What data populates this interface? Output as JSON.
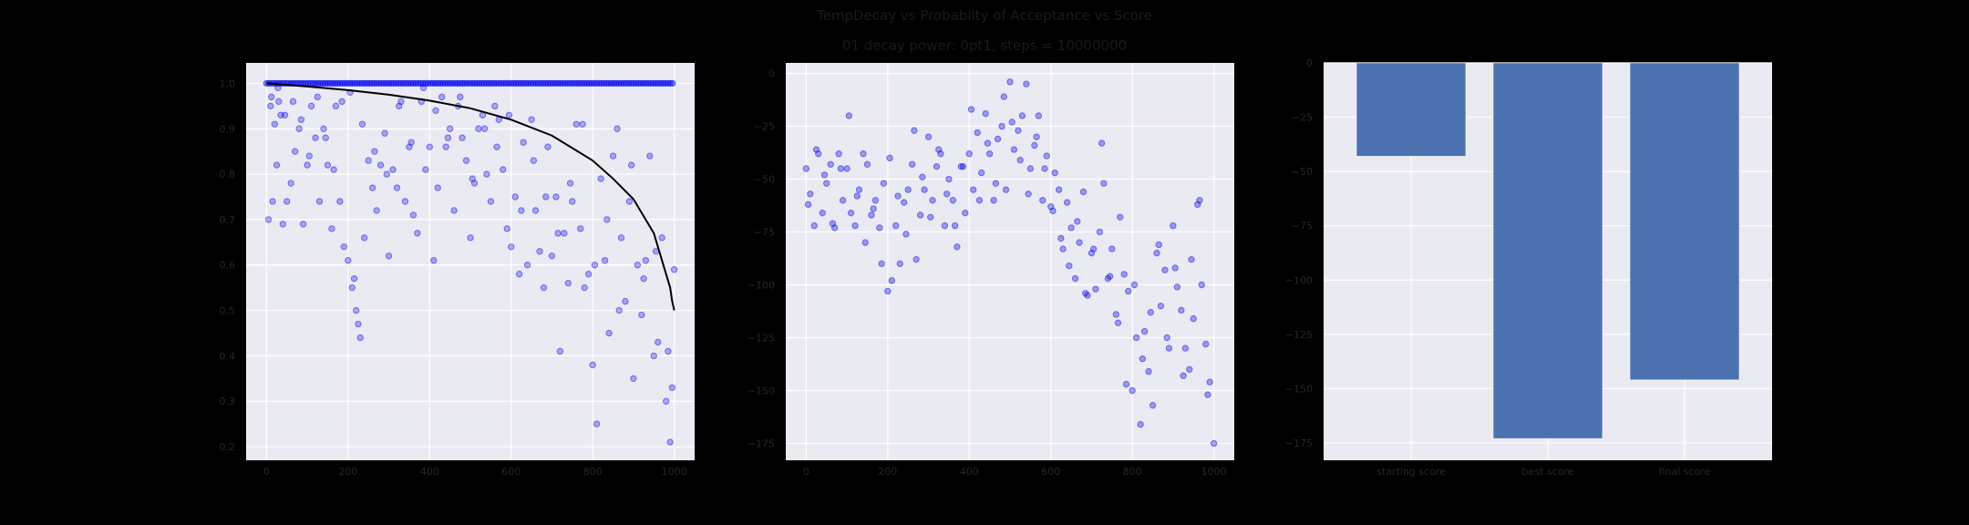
{
  "figure": {
    "title": "TempDecay vs Probablity of Acceptance vs Score",
    "subtitle": "01 decay power: 0pt1, steps = 10000000",
    "colors": {
      "background": "#000000",
      "panel": "#eaeaf2",
      "grid": "#ffffff",
      "points": "#0000ee",
      "curve": "#000000",
      "bar": "#4c72b0",
      "tick_text": "#262626"
    }
  },
  "chart_data": [
    {
      "type": "scatter",
      "xlim": [
        -50,
        1050
      ],
      "ylim": [
        0.17,
        1.045
      ],
      "xticks": [
        0,
        200,
        400,
        600,
        800,
        1000
      ],
      "yticks": [
        0.2,
        0.3,
        0.4,
        0.5,
        0.6,
        0.7,
        0.8,
        0.9,
        1.0
      ],
      "ytick_labels": [
        "0.2",
        "0.3",
        "0.4",
        "0.5",
        "0.6",
        "0.7",
        "0.8",
        "0.9",
        "1.0"
      ],
      "grid": true,
      "series": [
        {
          "marker": "circle",
          "point_alpha": 0.3,
          "note_values": "many accepted points at y=1.0 for x 0–1000 (dense band)",
          "x": [
            5,
            10,
            15,
            20,
            25,
            30,
            35,
            40,
            50,
            60,
            70,
            80,
            90,
            100,
            110,
            120,
            130,
            140,
            150,
            160,
            170,
            180,
            190,
            200,
            210,
            215,
            220,
            225,
            230,
            240,
            250,
            260,
            270,
            280,
            290,
            300,
            310,
            320,
            330,
            340,
            350,
            360,
            370,
            380,
            390,
            400,
            410,
            420,
            430,
            440,
            450,
            460,
            470,
            480,
            490,
            500,
            510,
            520,
            530,
            540,
            550,
            560,
            570,
            580,
            590,
            600,
            610,
            620,
            630,
            640,
            650,
            660,
            670,
            680,
            690,
            700,
            710,
            720,
            730,
            740,
            750,
            760,
            770,
            780,
            790,
            800,
            810,
            820,
            830,
            840,
            850,
            860,
            870,
            880,
            890,
            900,
            910,
            920,
            930,
            940,
            950,
            960,
            970,
            980,
            990,
            1000,
            12,
            28,
            45,
            65,
            85,
            105,
            125,
            145,
            165,
            185,
            205,
            235,
            265,
            295,
            325,
            355,
            385,
            415,
            445,
            475,
            505,
            535,
            565,
            595,
            625,
            655,
            685,
            715,
            745,
            775,
            805,
            835,
            865,
            895,
            925,
            955,
            985,
            995
          ],
          "y": [
            0.7,
            0.95,
            0.74,
            0.91,
            0.82,
            0.96,
            0.93,
            0.69,
            0.74,
            0.78,
            0.85,
            0.9,
            0.69,
            0.82,
            0.95,
            0.88,
            0.74,
            0.9,
            0.82,
            0.68,
            0.95,
            0.74,
            0.64,
            0.61,
            0.55,
            0.57,
            0.5,
            0.47,
            0.44,
            0.66,
            0.83,
            0.77,
            0.72,
            0.82,
            0.89,
            0.62,
            0.81,
            0.77,
            0.96,
            0.74,
            0.86,
            0.71,
            0.67,
            0.96,
            0.81,
            0.86,
            0.61,
            0.77,
            0.97,
            0.86,
            0.9,
            0.72,
            0.95,
            0.88,
            0.83,
            0.66,
            0.78,
            0.9,
            0.93,
            0.8,
            0.74,
            0.95,
            0.92,
            0.81,
            0.68,
            0.64,
            0.75,
            0.58,
            0.87,
            0.6,
            0.92,
            0.72,
            0.63,
            0.55,
            0.86,
            0.62,
            0.75,
            0.41,
            0.67,
            0.56,
            0.74,
            0.91,
            0.68,
            0.55,
            0.58,
            0.38,
            0.25,
            0.79,
            0.61,
            0.45,
            0.84,
            0.9,
            0.66,
            0.52,
            0.74,
            0.35,
            0.6,
            0.49,
            0.61,
            0.84,
            0.4,
            0.43,
            0.66,
            0.3,
            0.21,
            0.59,
            0.97,
            0.99,
            0.93,
            0.96,
            0.92,
            0.84,
            0.97,
            0.88,
            0.81,
            0.96,
            0.98,
            0.91,
            0.85,
            0.8,
            0.95,
            0.87,
            0.99,
            0.94,
            0.88,
            0.97,
            0.79,
            0.9,
            0.86,
            0.93,
            0.72,
            0.83,
            0.75,
            0.67,
            0.78,
            0.91,
            0.6,
            0.7,
            0.5,
            0.82,
            0.57,
            0.63,
            0.41,
            0.33
          ]
        },
        {
          "type": "line",
          "name": "",
          "x": [
            0,
            100,
            200,
            300,
            400,
            500,
            600,
            700,
            800,
            850,
            900,
            950,
            980,
            990,
            995,
            1000
          ],
          "y": [
            1.0,
            0.993,
            0.985,
            0.975,
            0.962,
            0.945,
            0.92,
            0.885,
            0.83,
            0.79,
            0.745,
            0.67,
            0.58,
            0.55,
            0.52,
            0.5
          ]
        }
      ]
    },
    {
      "type": "scatter",
      "xlim": [
        -50,
        1050
      ],
      "ylim": [
        -183,
        5
      ],
      "xticks": [
        0,
        200,
        400,
        600,
        800,
        1000
      ],
      "yticks": [
        0,
        -25,
        -50,
        -75,
        -100,
        -125,
        -150,
        -175
      ],
      "ytick_labels": [
        "0",
        "−25",
        "−50",
        "−75",
        "−100",
        "−125",
        "−150",
        "−175"
      ],
      "grid": true,
      "series": [
        {
          "marker": "circle",
          "point_alpha": 0.35,
          "x": [
            0,
            10,
            20,
            30,
            40,
            50,
            60,
            70,
            80,
            90,
            100,
            110,
            120,
            130,
            140,
            150,
            160,
            170,
            180,
            190,
            200,
            210,
            220,
            230,
            240,
            250,
            260,
            270,
            280,
            290,
            300,
            310,
            320,
            330,
            340,
            350,
            360,
            370,
            380,
            390,
            400,
            410,
            420,
            430,
            440,
            450,
            460,
            470,
            480,
            490,
            500,
            510,
            520,
            530,
            540,
            550,
            560,
            570,
            580,
            590,
            600,
            610,
            620,
            630,
            640,
            650,
            660,
            670,
            680,
            690,
            700,
            710,
            720,
            730,
            740,
            750,
            760,
            770,
            780,
            790,
            800,
            810,
            820,
            830,
            840,
            850,
            860,
            870,
            880,
            890,
            900,
            910,
            920,
            930,
            940,
            950,
            960,
            970,
            980,
            990,
            1000,
            5,
            25,
            45,
            65,
            85,
            105,
            125,
            145,
            165,
            185,
            205,
            225,
            245,
            265,
            285,
            305,
            325,
            345,
            365,
            385,
            405,
            425,
            445,
            465,
            485,
            505,
            525,
            545,
            565,
            585,
            605,
            625,
            645,
            665,
            685,
            705,
            725,
            745,
            765,
            785,
            805,
            825,
            845,
            865,
            885,
            905,
            925,
            945,
            965,
            985
          ],
          "y": [
            -45,
            -57,
            -72,
            -38,
            -66,
            -52,
            -43,
            -73,
            -38,
            -60,
            -45,
            -66,
            -72,
            -55,
            -38,
            -43,
            -67,
            -60,
            -73,
            -52,
            -103,
            -98,
            -72,
            -90,
            -61,
            -55,
            -43,
            -88,
            -67,
            -55,
            -30,
            -60,
            -44,
            -38,
            -72,
            -50,
            -60,
            -82,
            -44,
            -66,
            -38,
            -55,
            -28,
            -47,
            -19,
            -38,
            -60,
            -31,
            -25,
            -55,
            -4,
            -36,
            -27,
            -20,
            -5,
            -45,
            -34,
            -20,
            -60,
            -39,
            -63,
            -47,
            -55,
            -83,
            -61,
            -73,
            -97,
            -80,
            -56,
            -105,
            -85,
            -102,
            -75,
            -52,
            -97,
            -83,
            -114,
            -68,
            -95,
            -103,
            -150,
            -125,
            -166,
            -122,
            -141,
            -157,
            -85,
            -110,
            -93,
            -130,
            -72,
            -101,
            -112,
            -130,
            -140,
            -116,
            -62,
            -100,
            -128,
            -146,
            -175,
            -62,
            -36,
            -48,
            -71,
            -45,
            -20,
            -58,
            -80,
            -64,
            -90,
            -40,
            -58,
            -76,
            -27,
            -49,
            -68,
            -36,
            -57,
            -72,
            -44,
            -17,
            -60,
            -33,
            -52,
            -11,
            -23,
            -41,
            -57,
            -30,
            -45,
            -65,
            -78,
            -91,
            -70,
            -104,
            -83,
            -33,
            -96,
            -118,
            -147,
            -100,
            -135,
            -113,
            -81,
            -125,
            -92,
            -143,
            -88,
            -60,
            -152
          ]
        }
      ]
    },
    {
      "type": "bar",
      "ylim": [
        -183,
        0
      ],
      "categories": [
        "starting score",
        "best score",
        "final score"
      ],
      "values": [
        -43,
        -173,
        -146
      ],
      "yticks": [
        0,
        -25,
        -50,
        -75,
        -100,
        -125,
        -150,
        -175
      ],
      "ytick_labels": [
        "0",
        "−25",
        "−50",
        "−75",
        "−100",
        "−125",
        "−150",
        "−175"
      ],
      "grid": true
    }
  ]
}
